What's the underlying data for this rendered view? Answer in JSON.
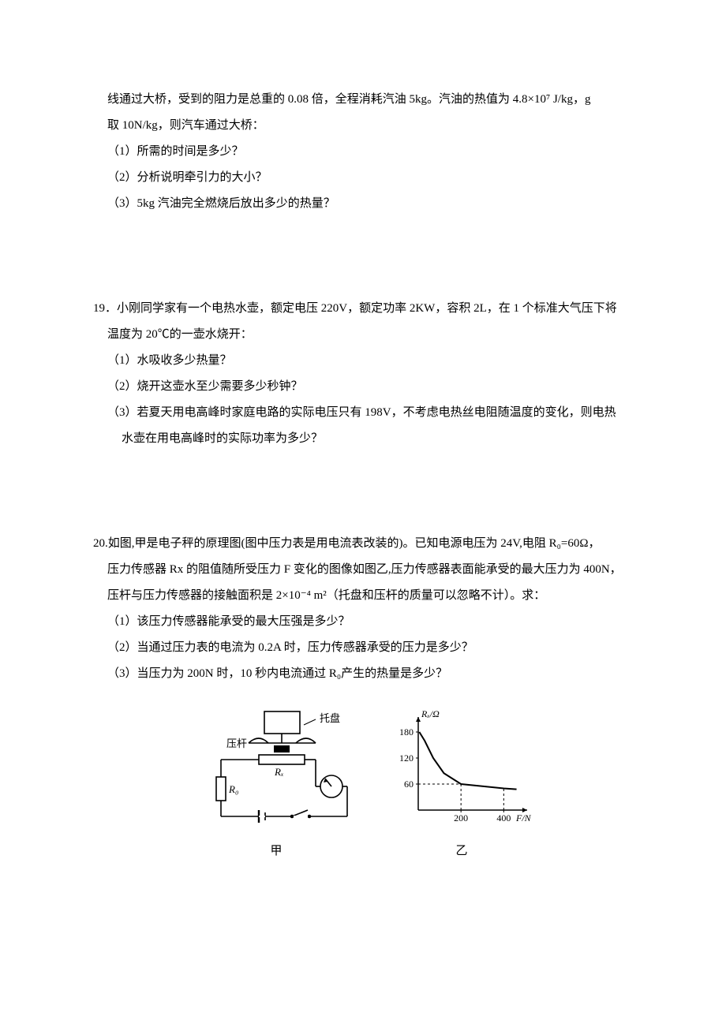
{
  "q18": {
    "l1": "线通过大桥，受到的阻力是总重的 0.08 倍，全程消耗汽油 5kg。汽油的热值为 4.8×10⁷ J/kg，g",
    "l2": "取 10N/kg，则汽车通过大桥：",
    "p1": "（1）所需的时间是多少？",
    "p2": "（2）分析说明牵引力的大小？",
    "p3": "（3）5kg 汽油完全燃烧后放出多少的热量？"
  },
  "q19": {
    "l1": "19．小刚同学家有一个电热水壶，额定电压 220V，额定功率 2KW，容积 2L，在 1 个标准大气压下将",
    "l2": "温度为 20℃的一壶水烧开：",
    "p1": "（1）水吸收多少热量？",
    "p2": "（2）烧开这壶水至少需要多少秒钟？",
    "p3a": "（3）若夏天用电高峰时家庭电路的实际电压只有 198V，不考虑电热丝电阻随温度的变化，则电热",
    "p3b": "水壶在用电高峰时的实际功率为多少？"
  },
  "q20": {
    "l1a": "20.如图,甲是电子秤的原理图(图中压力表是用电流表改装的)。已知电源电压为 24V,电阻 R₀=60Ω，",
    "l2": "压力传感器 Rx 的阻值随所受压力 F 变化的图像如图乙,压力传感器表面能承受的最大压力为 400N，",
    "l3": "压杆与压力传感器的接触面积是 2×10⁻⁴ m²（托盘和压杆的质量可以忽略不计）。求：",
    "p1": "（1）该压力传感器能承受的最大压强是多少？",
    "p2": "（2）当通过压力表的电流为 0.2A 时，压力传感器承受的压力是多少？",
    "p3": "（3）当压力为 200N 时，10 秒内电流通过 R₀产生的热量是多少？",
    "cap1": "甲",
    "cap2": "乙"
  },
  "circuit": {
    "tray_label": "托盘",
    "rod_label": "压杆",
    "rx_label": "Rₓ",
    "r0_label": "R₀",
    "stroke": "#000000",
    "bg": "#ffffff",
    "font_size": 13
  },
  "graph": {
    "y_label": "Rₓ/Ω",
    "x_label": "F/N",
    "y_ticks": [
      60,
      120,
      180
    ],
    "x_ticks": [
      200,
      400
    ],
    "y_max": 200,
    "x_max": 480,
    "curve_points": [
      [
        5,
        180
      ],
      [
        30,
        160
      ],
      [
        70,
        120
      ],
      [
        120,
        85
      ],
      [
        200,
        60
      ],
      [
        300,
        55
      ],
      [
        400,
        50
      ],
      [
        460,
        48
      ]
    ],
    "dash_v1_x": 200,
    "dash_v1_y": 62,
    "dash_v2_x": 400,
    "dash_v2_y": 50,
    "dash_h_y": 60,
    "dash_h_x": 200,
    "stroke": "#000000",
    "font_size": 12
  }
}
